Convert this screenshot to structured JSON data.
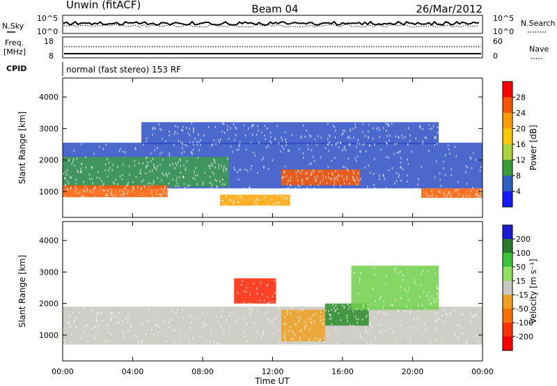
{
  "header": {
    "station": "Unwin (fitACF)",
    "beam": "Beam 04",
    "date": "26/Mar/2012"
  },
  "status_panels": {
    "nsky_label": "N.Sky",
    "nsearch_label": "N.Search",
    "noise_ticks": [
      "10^5",
      "10^0"
    ],
    "freq_label": "Freq.",
    "freq_unit": "[MHz]",
    "freq_ticks": [
      "18",
      "8"
    ],
    "nave_label": "Nave",
    "nave_ticks": [
      "60",
      "0"
    ],
    "cpid_label": "CPID",
    "cpid_text": "normal (fast stereo) 153 RF"
  },
  "chart_data": [
    {
      "type": "heatmap",
      "name": "power",
      "ylabel": "Slant Range [km]",
      "yticks": [
        "1000",
        "2000",
        "3000",
        "4000"
      ],
      "ylim": [
        180,
        4600
      ],
      "colorbar_label": "Power [dB]",
      "colorbar_ticks": [
        "28",
        "24",
        "20",
        "16",
        "12",
        "8",
        "4"
      ],
      "colorbar_colors": [
        "#ff0000",
        "#ff5500",
        "#ff9a00",
        "#f5c800",
        "#a8d43c",
        "#3a9b3a",
        "#3060c0",
        "#1818ff"
      ],
      "bands": [
        {
          "level": "low",
          "color": "#2b4fc4",
          "t0": 0.0,
          "t1": 24.0,
          "r0": 1100,
          "r1": 2550
        },
        {
          "level": "mid",
          "color": "#3f9e4a",
          "t0": 0.0,
          "t1": 9.5,
          "r0": 1150,
          "r1": 2100
        },
        {
          "level": "high",
          "color": "#ff5a00",
          "t0": 0.0,
          "t1": 6.0,
          "r0": 820,
          "r1": 1200
        },
        {
          "level": "high",
          "color": "#ff5a00",
          "t0": 12.5,
          "t1": 17.0,
          "r0": 1200,
          "r1": 1700
        },
        {
          "level": "high",
          "color": "#ff5a00",
          "t0": 20.5,
          "t1": 24.0,
          "r0": 800,
          "r1": 1100
        },
        {
          "level": "mid",
          "color": "#ffa200",
          "t0": 9.0,
          "t1": 13.0,
          "r0": 550,
          "r1": 900
        },
        {
          "level": "low",
          "color": "#2b4fc4",
          "t0": 4.5,
          "t1": 21.5,
          "r0": 2500,
          "r1": 3200
        }
      ]
    },
    {
      "type": "heatmap",
      "name": "velocity",
      "xlabel": "Time UT",
      "xticks": [
        "00:00",
        "04:00",
        "08:00",
        "12:00",
        "16:00",
        "20:00",
        "00:00"
      ],
      "xlim_hours": [
        0,
        24
      ],
      "ylabel": "Slant Range [km]",
      "yticks": [
        "1000",
        "2000",
        "3000",
        "4000"
      ],
      "ylim": [
        180,
        4600
      ],
      "colorbar_label": "Velocity [m s⁻¹]",
      "colorbar_ticks": [
        "200",
        "100",
        "50",
        "15",
        "-15",
        "-50",
        "-100",
        "-200"
      ],
      "colorbar_colors": [
        "#1c1cd0",
        "#2a7c2a",
        "#3cc43c",
        "#8ee05e",
        "#c8c8c0",
        "#f0a020",
        "#ff7000",
        "#ff3000",
        "#ff0000"
      ],
      "bands": [
        {
          "level": "ground",
          "color": "#c7c7be",
          "t0": 0.0,
          "t1": 24.0,
          "r0": 700,
          "r1": 1900
        },
        {
          "level": "negative",
          "color": "#ff2000",
          "t0": 9.8,
          "t1": 12.2,
          "r0": 2000,
          "r1": 2800
        },
        {
          "level": "negative",
          "color": "#f0a020",
          "t0": 12.5,
          "t1": 15.0,
          "r0": 800,
          "r1": 1800
        },
        {
          "level": "positive",
          "color": "#2a8c2a",
          "t0": 15.0,
          "t1": 17.5,
          "r0": 1300,
          "r1": 2000
        },
        {
          "level": "positive",
          "color": "#6ed04a",
          "t0": 16.5,
          "t1": 21.5,
          "r0": 1800,
          "r1": 3200
        }
      ]
    }
  ]
}
